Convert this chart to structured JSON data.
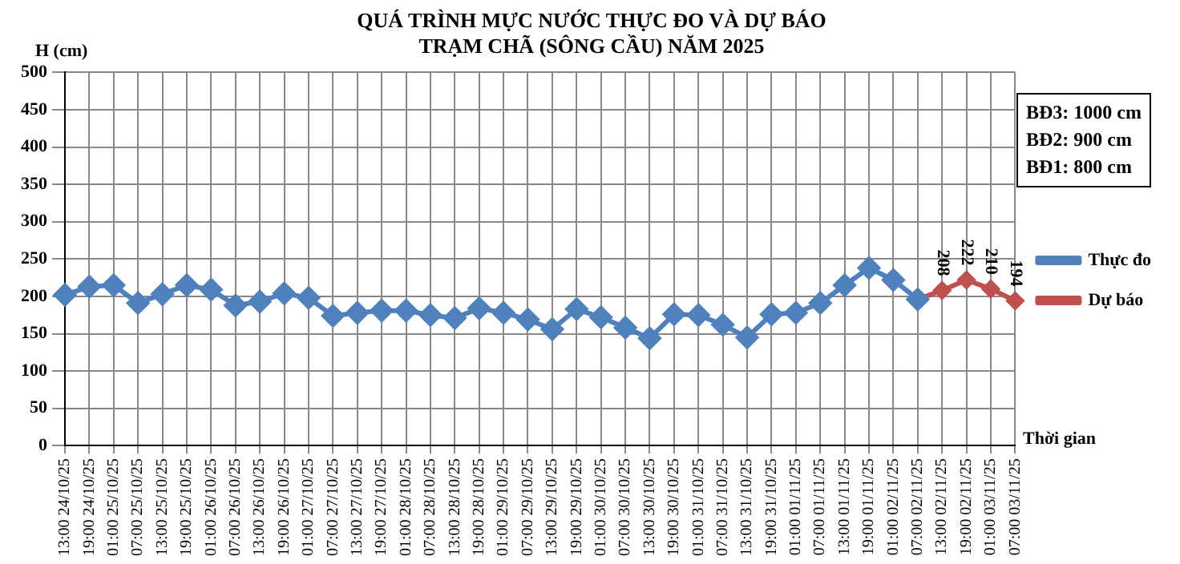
{
  "chart_data": {
    "type": "line",
    "title": "QUÁ TRÌNH MỰC NƯỚC THỰC ĐO VÀ DỰ BÁO\nTRẠM CHÃ (SÔNG CẦU) NĂM 2025",
    "ylabel": "H (cm)",
    "xlabel": "Thời gian",
    "annotations": [
      "BĐ3: 1000 cm\nBĐ2: 900 cm\nBĐ1: 800 cm"
    ],
    "categories": [
      "13:00 24/10/25",
      "19:00 24/10/25",
      "01:00 25/10/25",
      "07:00 25/10/25",
      "13:00 25/10/25",
      "19:00 25/10/25",
      "01:00 26/10/25",
      "07:00 26/10/25",
      "13:00 26/10/25",
      "19:00 26/10/25",
      "01:00 27/10/25",
      "07:00 27/10/25",
      "13:00 27/10/25",
      "19:00 27/10/25",
      "01:00 28/10/25",
      "07:00 28/10/25",
      "13:00 28/10/25",
      "19:00 28/10/25",
      "01:00 29/10/25",
      "07:00 29/10/25",
      "13:00 29/10/25",
      "19:00 29/10/25",
      "01:00 30/10/25",
      "07:00 30/10/25",
      "13:00 30/10/25",
      "19:00 30/10/25",
      "01:00 31/10/25",
      "07:00 31/10/25",
      "13:00 31/10/25",
      "19:00 31/10/25",
      "01:00 01/11/25",
      "07:00 01/11/25",
      "13:00 01/11/25",
      "19:00 01/11/25",
      "01:00 02/11/25",
      "07:00 02/11/25",
      "13:00 02/11/25",
      "19:00 02/11/25",
      "01:00 03/11/25",
      "07:00 03/11/25"
    ],
    "series": [
      {
        "name": "Thực đo",
        "color": "#4f81bd",
        "values": [
          202,
          213,
          215,
          191,
          203,
          215,
          209,
          188,
          193,
          204,
          198,
          174,
          178,
          181,
          181,
          175,
          171,
          184,
          178,
          169,
          156,
          183,
          172,
          158,
          144,
          176,
          175,
          162,
          145,
          176,
          178,
          191,
          215,
          238,
          222,
          196,
          null,
          null,
          null,
          null
        ]
      },
      {
        "name": "Dự báo",
        "color": "#c0504d",
        "values": [
          null,
          null,
          null,
          null,
          null,
          null,
          null,
          null,
          null,
          null,
          null,
          null,
          null,
          null,
          null,
          null,
          null,
          null,
          null,
          null,
          null,
          null,
          null,
          null,
          null,
          null,
          null,
          null,
          null,
          null,
          null,
          null,
          null,
          null,
          null,
          196,
          208,
          222,
          210,
          194
        ],
        "value_labels": [
          null,
          null,
          null,
          null,
          null,
          null,
          null,
          null,
          null,
          null,
          null,
          null,
          null,
          null,
          null,
          null,
          null,
          null,
          null,
          null,
          null,
          null,
          null,
          null,
          null,
          null,
          null,
          null,
          null,
          null,
          null,
          null,
          null,
          null,
          null,
          null,
          "208",
          "222",
          "210",
          "194"
        ]
      }
    ],
    "ylim": [
      0,
      500
    ],
    "yticks": [
      0,
      50,
      100,
      150,
      200,
      250,
      300,
      350,
      400,
      450,
      500
    ],
    "grid": true,
    "legend": "right",
    "marker": "diamond",
    "line_style": "solid"
  }
}
